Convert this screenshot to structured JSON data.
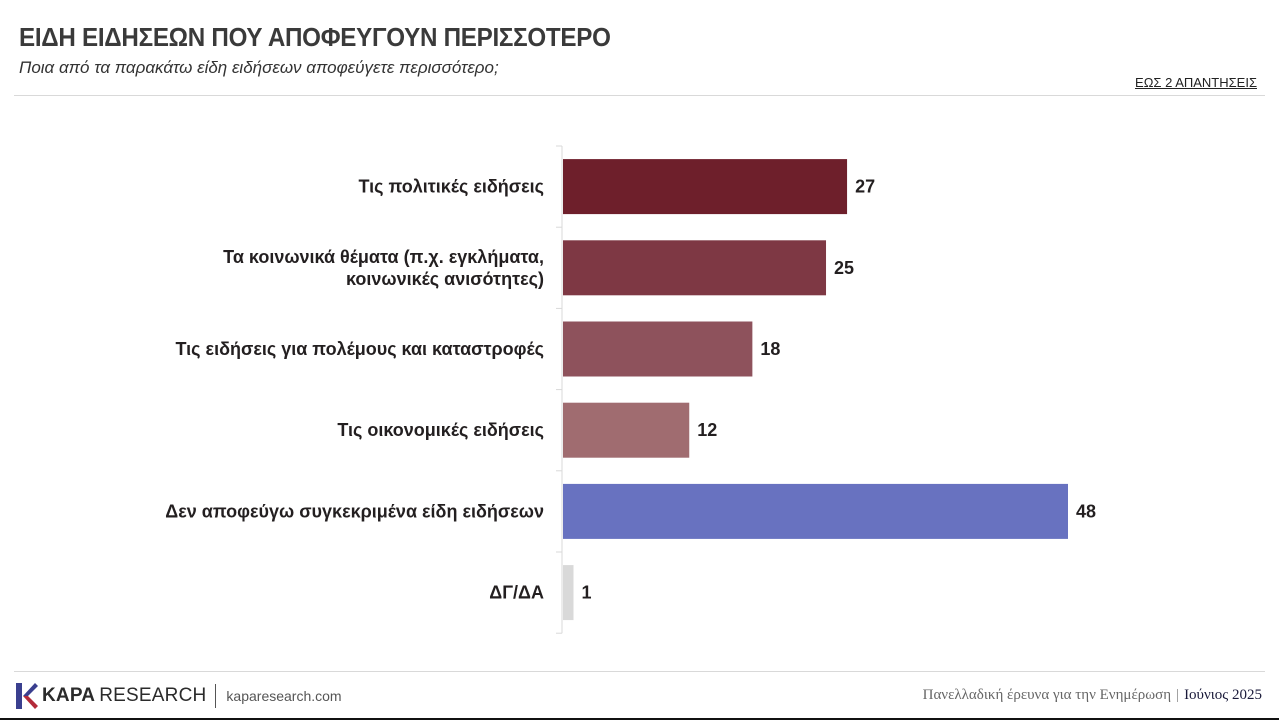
{
  "header": {
    "title": "ΕΙΔΗ ΕΙΔΗΣΕΩΝ ΠΟΥ ΑΠΟΦΕΥΓΟΥΝ ΠΕΡΙΣΣΟΤΕΡΟ",
    "subtitle": "Ποια από τα παρακάτω είδη ειδήσεων αποφεύγετε περισσότερο;",
    "note": "ΕΩΣ 2 ΑΠΑΝΤΗΣΕΙΣ"
  },
  "chart_data": {
    "type": "bar",
    "orientation": "horizontal",
    "categories": [
      [
        "Τις πολιτικές ειδήσεις"
      ],
      [
        "Τα κοινωνικά θέματα (π.χ. εγκλήματα,",
        "κοινωνικές ανισότητες)"
      ],
      [
        "Τις ειδήσεις για πολέμους και καταστροφές"
      ],
      [
        "Τις οικονομικές ειδήσεις"
      ],
      [
        "Δεν αποφεύγω συγκεκριμένα είδη ειδήσεων"
      ],
      [
        "ΔΓ/ΔΑ"
      ]
    ],
    "values": [
      27,
      25,
      18,
      12,
      48,
      1
    ],
    "colors": [
      "#6e1f2b",
      "#7e3844",
      "#8e525c",
      "#a06c70",
      "#6872c0",
      "#d9d9d9"
    ],
    "xlim": [
      0,
      48
    ],
    "grid": false,
    "legend": "none",
    "data_labels": true
  },
  "footer": {
    "logo_kapa": "KAPA",
    "logo_research": "RESEARCH",
    "website": "kaparesearch.com",
    "survey": "Πανελλαδική έρευνα για την Ενημέρωση",
    "separator": "|",
    "date": "Ιούνιος 2025"
  }
}
